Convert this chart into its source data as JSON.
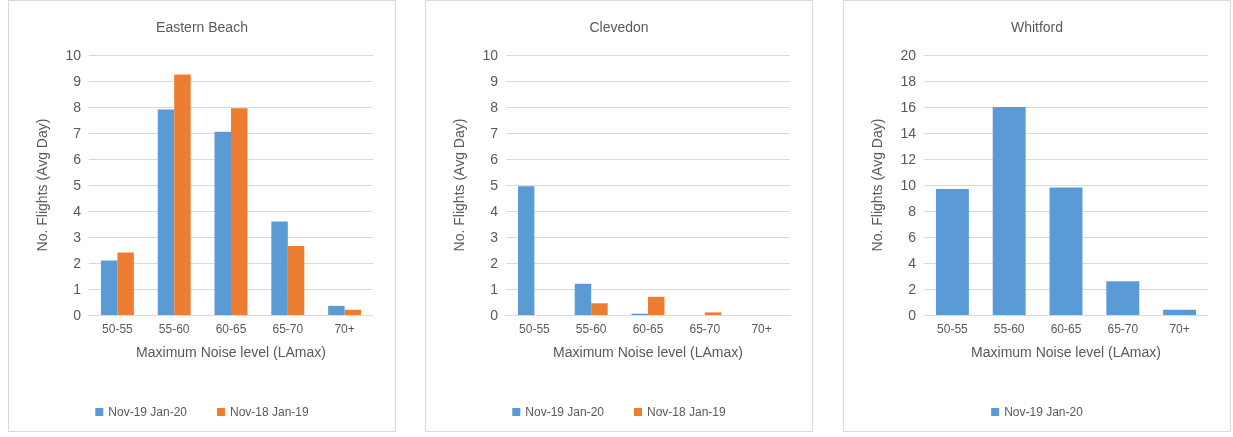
{
  "chart_data": [
    {
      "type": "bar",
      "title": "Eastern Beach",
      "xlabel": "Maximum Noise level (LAmax)",
      "ylabel": "No. Flights (Avg Day)",
      "categories": [
        "50-55",
        "55-60",
        "60-65",
        "65-70",
        "70+"
      ],
      "series": [
        {
          "name": "Nov-19 Jan-20",
          "color": "#5b9bd5",
          "values": [
            2.1,
            7.9,
            7.05,
            3.6,
            0.35
          ]
        },
        {
          "name": "Nov-18 Jan-19",
          "color": "#ed7d31",
          "values": [
            2.4,
            9.25,
            7.95,
            2.65,
            0.2
          ]
        }
      ],
      "ylim": [
        0,
        10
      ],
      "yticks": [
        0,
        1,
        2,
        3,
        4,
        5,
        6,
        7,
        8,
        9,
        10
      ],
      "grid": "y",
      "legend": "bottom"
    },
    {
      "type": "bar",
      "title": "Clevedon",
      "xlabel": "Maximum Noise level (LAmax)",
      "ylabel": "No. Flights (Avg Day)",
      "categories": [
        "50-55",
        "55-60",
        "60-65",
        "65-70",
        "70+"
      ],
      "series": [
        {
          "name": "Nov-19 Jan-20",
          "color": "#5b9bd5",
          "values": [
            4.95,
            1.2,
            0.05,
            0,
            0
          ]
        },
        {
          "name": "Nov-18 Jan-19",
          "color": "#ed7d31",
          "values": [
            0,
            0.45,
            0.7,
            0.1,
            0
          ]
        }
      ],
      "ylim": [
        0,
        10
      ],
      "yticks": [
        0,
        1,
        2,
        3,
        4,
        5,
        6,
        7,
        8,
        9,
        10
      ],
      "grid": "y",
      "legend": "bottom"
    },
    {
      "type": "bar",
      "title": "Whitford",
      "xlabel": "Maximum Noise level (LAmax)",
      "ylabel": "No. Flights (Avg Day)",
      "categories": [
        "50-55",
        "55-60",
        "60-65",
        "65-70",
        "70+"
      ],
      "series": [
        {
          "name": "Nov-19 Jan-20",
          "color": "#5b9bd5",
          "values": [
            9.7,
            16,
            9.8,
            2.6,
            0.4
          ]
        }
      ],
      "ylim": [
        0,
        20
      ],
      "yticks": [
        0,
        2,
        4,
        6,
        8,
        10,
        12,
        14,
        16,
        18,
        20
      ],
      "grid": "y",
      "legend": "bottom"
    }
  ]
}
